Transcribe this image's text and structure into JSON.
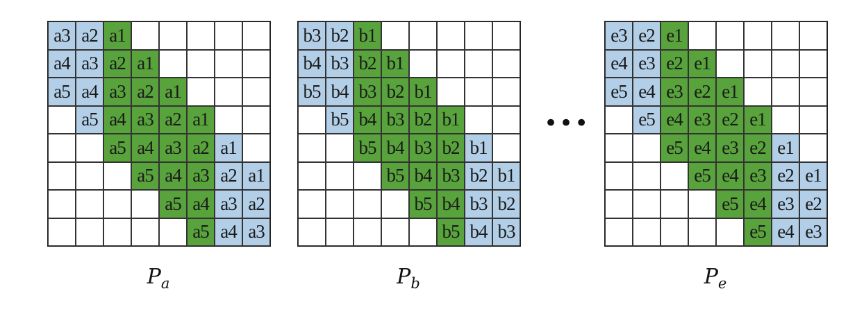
{
  "colors": {
    "blue": "#b3cfe8",
    "green": "#59a33d",
    "white": "#ffffff"
  },
  "ellipsis": "•••",
  "matrices": [
    {
      "caption_base": "P",
      "caption_sub": "a",
      "rows": [
        [
          [
            "a3",
            "blue"
          ],
          [
            "a2",
            "blue"
          ],
          [
            "a1",
            "green"
          ],
          [
            "",
            "white"
          ],
          [
            "",
            "white"
          ],
          [
            "",
            "white"
          ],
          [
            "",
            "white"
          ],
          [
            "",
            "white"
          ]
        ],
        [
          [
            "a4",
            "blue"
          ],
          [
            "a3",
            "blue"
          ],
          [
            "a2",
            "green"
          ],
          [
            "a1",
            "green"
          ],
          [
            "",
            "white"
          ],
          [
            "",
            "white"
          ],
          [
            "",
            "white"
          ],
          [
            "",
            "white"
          ]
        ],
        [
          [
            "a5",
            "blue"
          ],
          [
            "a4",
            "blue"
          ],
          [
            "a3",
            "green"
          ],
          [
            "a2",
            "green"
          ],
          [
            "a1",
            "green"
          ],
          [
            "",
            "white"
          ],
          [
            "",
            "white"
          ],
          [
            "",
            "white"
          ]
        ],
        [
          [
            "",
            "white"
          ],
          [
            "a5",
            "blue"
          ],
          [
            "a4",
            "green"
          ],
          [
            "a3",
            "green"
          ],
          [
            "a2",
            "green"
          ],
          [
            "a1",
            "green"
          ],
          [
            "",
            "white"
          ],
          [
            "",
            "white"
          ]
        ],
        [
          [
            "",
            "white"
          ],
          [
            "",
            "white"
          ],
          [
            "a5",
            "green"
          ],
          [
            "a4",
            "green"
          ],
          [
            "a3",
            "green"
          ],
          [
            "a2",
            "green"
          ],
          [
            "a1",
            "blue"
          ],
          [
            "",
            "white"
          ]
        ],
        [
          [
            "",
            "white"
          ],
          [
            "",
            "white"
          ],
          [
            "",
            "white"
          ],
          [
            "a5",
            "green"
          ],
          [
            "a4",
            "green"
          ],
          [
            "a3",
            "green"
          ],
          [
            "a2",
            "blue"
          ],
          [
            "a1",
            "blue"
          ]
        ],
        [
          [
            "",
            "white"
          ],
          [
            "",
            "white"
          ],
          [
            "",
            "white"
          ],
          [
            "",
            "white"
          ],
          [
            "a5",
            "green"
          ],
          [
            "a4",
            "green"
          ],
          [
            "a3",
            "blue"
          ],
          [
            "a2",
            "blue"
          ]
        ],
        [
          [
            "",
            "white"
          ],
          [
            "",
            "white"
          ],
          [
            "",
            "white"
          ],
          [
            "",
            "white"
          ],
          [
            "",
            "white"
          ],
          [
            "a5",
            "green"
          ],
          [
            "a4",
            "blue"
          ],
          [
            "a3",
            "blue"
          ]
        ]
      ]
    },
    {
      "caption_base": "P",
      "caption_sub": "b",
      "rows": [
        [
          [
            "b3",
            "blue"
          ],
          [
            "b2",
            "blue"
          ],
          [
            "b1",
            "green"
          ],
          [
            "",
            "white"
          ],
          [
            "",
            "white"
          ],
          [
            "",
            "white"
          ],
          [
            "",
            "white"
          ],
          [
            "",
            "white"
          ]
        ],
        [
          [
            "b4",
            "blue"
          ],
          [
            "b3",
            "blue"
          ],
          [
            "b2",
            "green"
          ],
          [
            "b1",
            "green"
          ],
          [
            "",
            "white"
          ],
          [
            "",
            "white"
          ],
          [
            "",
            "white"
          ],
          [
            "",
            "white"
          ]
        ],
        [
          [
            "b5",
            "blue"
          ],
          [
            "b4",
            "blue"
          ],
          [
            "b3",
            "green"
          ],
          [
            "b2",
            "green"
          ],
          [
            "b1",
            "green"
          ],
          [
            "",
            "white"
          ],
          [
            "",
            "white"
          ],
          [
            "",
            "white"
          ]
        ],
        [
          [
            "",
            "white"
          ],
          [
            "b5",
            "blue"
          ],
          [
            "b4",
            "green"
          ],
          [
            "b3",
            "green"
          ],
          [
            "b2",
            "green"
          ],
          [
            "b1",
            "green"
          ],
          [
            "",
            "white"
          ],
          [
            "",
            "white"
          ]
        ],
        [
          [
            "",
            "white"
          ],
          [
            "",
            "white"
          ],
          [
            "b5",
            "green"
          ],
          [
            "b4",
            "green"
          ],
          [
            "b3",
            "green"
          ],
          [
            "b2",
            "green"
          ],
          [
            "b1",
            "blue"
          ],
          [
            "",
            "white"
          ]
        ],
        [
          [
            "",
            "white"
          ],
          [
            "",
            "white"
          ],
          [
            "",
            "white"
          ],
          [
            "b5",
            "green"
          ],
          [
            "b4",
            "green"
          ],
          [
            "b3",
            "green"
          ],
          [
            "b2",
            "blue"
          ],
          [
            "b1",
            "blue"
          ]
        ],
        [
          [
            "",
            "white"
          ],
          [
            "",
            "white"
          ],
          [
            "",
            "white"
          ],
          [
            "",
            "white"
          ],
          [
            "b5",
            "green"
          ],
          [
            "b4",
            "green"
          ],
          [
            "b3",
            "blue"
          ],
          [
            "b2",
            "blue"
          ]
        ],
        [
          [
            "",
            "white"
          ],
          [
            "",
            "white"
          ],
          [
            "",
            "white"
          ],
          [
            "",
            "white"
          ],
          [
            "",
            "white"
          ],
          [
            "b5",
            "green"
          ],
          [
            "b4",
            "blue"
          ],
          [
            "b3",
            "blue"
          ]
        ]
      ]
    },
    {
      "caption_base": "P",
      "caption_sub": "e",
      "rows": [
        [
          [
            "e3",
            "blue"
          ],
          [
            "e2",
            "blue"
          ],
          [
            "e1",
            "green"
          ],
          [
            "",
            "white"
          ],
          [
            "",
            "white"
          ],
          [
            "",
            "white"
          ],
          [
            "",
            "white"
          ],
          [
            "",
            "white"
          ]
        ],
        [
          [
            "e4",
            "blue"
          ],
          [
            "e3",
            "blue"
          ],
          [
            "e2",
            "green"
          ],
          [
            "e1",
            "green"
          ],
          [
            "",
            "white"
          ],
          [
            "",
            "white"
          ],
          [
            "",
            "white"
          ],
          [
            "",
            "white"
          ]
        ],
        [
          [
            "e5",
            "blue"
          ],
          [
            "e4",
            "blue"
          ],
          [
            "e3",
            "green"
          ],
          [
            "e2",
            "green"
          ],
          [
            "e1",
            "green"
          ],
          [
            "",
            "white"
          ],
          [
            "",
            "white"
          ],
          [
            "",
            "white"
          ]
        ],
        [
          [
            "",
            "white"
          ],
          [
            "e5",
            "blue"
          ],
          [
            "e4",
            "green"
          ],
          [
            "e3",
            "green"
          ],
          [
            "e2",
            "green"
          ],
          [
            "e1",
            "green"
          ],
          [
            "",
            "white"
          ],
          [
            "",
            "white"
          ]
        ],
        [
          [
            "",
            "white"
          ],
          [
            "",
            "white"
          ],
          [
            "e5",
            "green"
          ],
          [
            "e4",
            "green"
          ],
          [
            "e3",
            "green"
          ],
          [
            "e2",
            "green"
          ],
          [
            "e1",
            "blue"
          ],
          [
            "",
            "white"
          ]
        ],
        [
          [
            "",
            "white"
          ],
          [
            "",
            "white"
          ],
          [
            "",
            "white"
          ],
          [
            "e5",
            "green"
          ],
          [
            "e4",
            "green"
          ],
          [
            "e3",
            "green"
          ],
          [
            "e2",
            "blue"
          ],
          [
            "e1",
            "blue"
          ]
        ],
        [
          [
            "",
            "white"
          ],
          [
            "",
            "white"
          ],
          [
            "",
            "white"
          ],
          [
            "",
            "white"
          ],
          [
            "e5",
            "green"
          ],
          [
            "e4",
            "green"
          ],
          [
            "e3",
            "blue"
          ],
          [
            "e2",
            "blue"
          ]
        ],
        [
          [
            "",
            "white"
          ],
          [
            "",
            "white"
          ],
          [
            "",
            "white"
          ],
          [
            "",
            "white"
          ],
          [
            "",
            "white"
          ],
          [
            "e5",
            "green"
          ],
          [
            "e4",
            "blue"
          ],
          [
            "e3",
            "blue"
          ]
        ]
      ]
    }
  ]
}
